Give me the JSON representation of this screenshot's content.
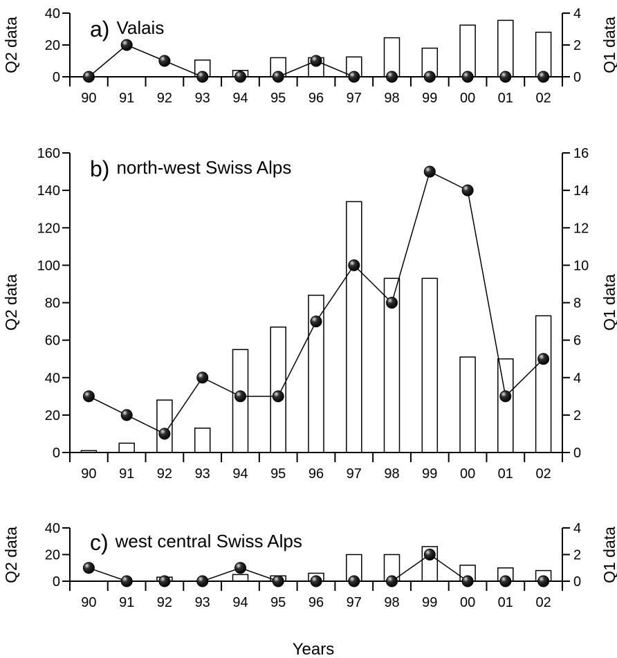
{
  "xaxis_title": "Years",
  "chart_data": [
    {
      "type": "bar",
      "panel": "a",
      "label": "a)",
      "title": "Valais",
      "categories": [
        "90",
        "91",
        "92",
        "93",
        "94",
        "95",
        "96",
        "97",
        "98",
        "99",
        "00",
        "01",
        "02"
      ],
      "ylabel_left": "Q2 data",
      "ylabel_right": "Q1 data",
      "ylim_left": [
        0,
        40
      ],
      "yticks_left": [
        0,
        20,
        40
      ],
      "ylim_right": [
        0,
        4
      ],
      "yticks_right": [
        0,
        2,
        4
      ],
      "series": [
        {
          "name": "Q2 data",
          "type": "bar",
          "axis": "left",
          "values": [
            0,
            0,
            0,
            10.5,
            4,
            12,
            12,
            12.5,
            24.5,
            18,
            32.5,
            35.5,
            28
          ]
        },
        {
          "name": "Q1 data",
          "type": "line",
          "axis": "right",
          "values": [
            0,
            2,
            1,
            0,
            0,
            0,
            1,
            0,
            0,
            0,
            0,
            0,
            0
          ]
        }
      ]
    },
    {
      "type": "bar",
      "panel": "b",
      "label": "b)",
      "title": "north-west Swiss Alps",
      "categories": [
        "90",
        "91",
        "92",
        "93",
        "94",
        "95",
        "96",
        "97",
        "98",
        "99",
        "00",
        "01",
        "02"
      ],
      "ylabel_left": "Q2 data",
      "ylabel_right": "Q1 data",
      "ylim_left": [
        0,
        160
      ],
      "yticks_left": [
        0,
        20,
        40,
        60,
        80,
        100,
        120,
        140,
        160
      ],
      "ylim_right": [
        0,
        16
      ],
      "yticks_right": [
        0,
        2,
        4,
        6,
        8,
        10,
        12,
        14,
        16
      ],
      "series": [
        {
          "name": "Q2 data",
          "type": "bar",
          "axis": "left",
          "values": [
            1,
            5,
            28,
            13,
            55,
            67,
            84,
            134,
            93,
            93,
            51,
            50,
            73
          ]
        },
        {
          "name": "Q1 data",
          "type": "line",
          "axis": "right",
          "values": [
            3,
            2,
            1,
            4,
            3,
            3,
            7,
            10,
            8,
            15,
            14,
            3,
            5
          ]
        }
      ]
    },
    {
      "type": "bar",
      "panel": "c",
      "label": "c)",
      "title": "west central Swiss Alps",
      "categories": [
        "90",
        "91",
        "92",
        "93",
        "94",
        "95",
        "96",
        "97",
        "98",
        "99",
        "00",
        "01",
        "02"
      ],
      "ylabel_left": "Q2 data",
      "ylabel_right": "Q1 data",
      "ylim_left": [
        0,
        40
      ],
      "yticks_left": [
        0,
        20,
        40
      ],
      "ylim_right": [
        0,
        4
      ],
      "yticks_right": [
        0,
        2,
        4
      ],
      "series": [
        {
          "name": "Q2 data",
          "type": "bar",
          "axis": "left",
          "values": [
            0,
            0,
            3,
            0,
            5,
            4,
            6,
            20,
            20,
            26,
            12,
            10,
            8
          ]
        },
        {
          "name": "Q1 data",
          "type": "line",
          "axis": "right",
          "values": [
            1,
            0,
            0,
            0,
            1,
            0,
            0,
            0,
            0,
            2,
            0,
            0,
            0
          ]
        }
      ]
    }
  ]
}
